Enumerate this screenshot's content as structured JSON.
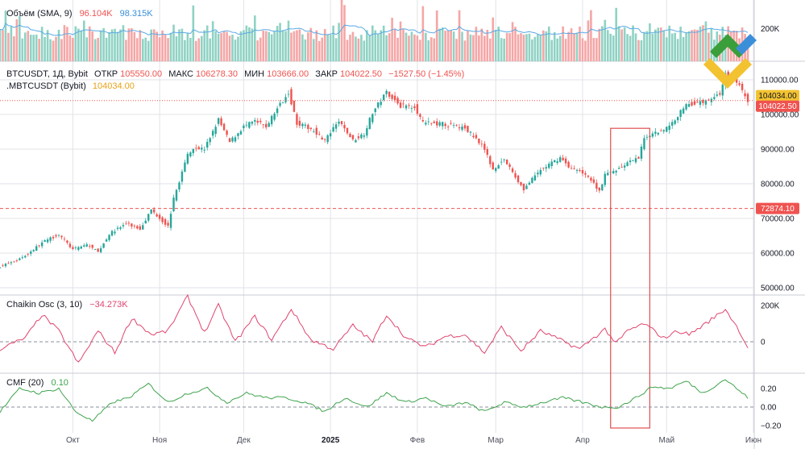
{
  "colors": {
    "up": "#26a69a",
    "down": "#ef5350",
    "vol_up": "#8fd2c4",
    "vol_down": "#f5a6a6",
    "sma": "#5aa9e6",
    "chaikin": "#e0446e",
    "cmf": "#3fa34d",
    "grid": "#e1e3ea",
    "text": "#131722",
    "annotation_box": "#e05050",
    "logo_green": "#3a9e3a",
    "logo_blue": "#3b8fd9",
    "logo_yellow": "#f2c230"
  },
  "volume_legend": {
    "label": "Объём (SMA, 9)",
    "v1": "96.104K",
    "v2": "98.315K"
  },
  "main_legend": {
    "title": "BTCUSDT, 1Д, Bybit",
    "open_label": "ОТКР",
    "open": "105550.00",
    "high_label": "МАКС",
    "high": "106278.30",
    "low_label": "МИН",
    "low": "103666.00",
    "close_label": "ЗАКР",
    "close": "104022.50",
    "change": "−1527.50 (−1.45%)",
    "symbol2": ".MBTCUSDT (Bybit)",
    "symbol2_value": "104034.00"
  },
  "chaikin_legend": {
    "label": "Chaikin Osc (3, 10)",
    "value": "−34.273K"
  },
  "cmf_legend": {
    "label": "CMF (20)",
    "value": "0.10"
  },
  "price_badges": {
    "mark": "104034.00",
    "last": "104022.50",
    "level": "72874.10"
  },
  "chart_data": {
    "type": "candlestick",
    "symbol": "BTCUSDT",
    "interval": "1Д",
    "exchange": "Bybit",
    "x_labels": [
      "Окт",
      "Ноя",
      "Дек",
      "2025",
      "Фев",
      "Мар",
      "Апр",
      "Май",
      "Июн"
    ],
    "price_ticks": [
      "110000.00",
      "100000.00",
      "90000.00",
      "80000.00",
      "70000.00",
      "60000.00",
      "50000.00"
    ],
    "volume_ticks": [
      "200K"
    ],
    "chaikin_ticks": [
      "200K",
      "0"
    ],
    "cmf_ticks": [
      "0.20",
      "0.00",
      "−0.20"
    ],
    "price_ylim": [
      50000,
      112000
    ],
    "horizontal_level": 72874.1,
    "last_price": 104022.5,
    "mark_price": 104034.0,
    "annotation_box": {
      "x_range": [
        "2025-04-11",
        "2025-04-25"
      ],
      "y_range": [
        null,
        96000
      ]
    },
    "close_path": [
      [
        "2024-09-05",
        56200
      ],
      [
        "2024-09-10",
        57500
      ],
      [
        "2024-09-15",
        59800
      ],
      [
        "2024-09-20",
        63000
      ],
      [
        "2024-09-26",
        65500
      ],
      [
        "2024-10-01",
        61000
      ],
      [
        "2024-10-06",
        62500
      ],
      [
        "2024-10-10",
        60300
      ],
      [
        "2024-10-14",
        65500
      ],
      [
        "2024-10-20",
        68500
      ],
      [
        "2024-10-25",
        67000
      ],
      [
        "2024-10-29",
        72500
      ],
      [
        "2024-11-04",
        67700
      ],
      [
        "2024-11-06",
        75600
      ],
      [
        "2024-11-11",
        88500
      ],
      [
        "2024-11-13",
        90500
      ],
      [
        "2024-11-17",
        90000
      ],
      [
        "2024-11-22",
        98500
      ],
      [
        "2024-11-26",
        92000
      ],
      [
        "2024-12-01",
        96500
      ],
      [
        "2024-12-05",
        98000
      ],
      [
        "2024-12-09",
        96500
      ],
      [
        "2024-12-12",
        100500
      ],
      [
        "2024-12-17",
        106500
      ],
      [
        "2024-12-20",
        97500
      ],
      [
        "2024-12-26",
        95500
      ],
      [
        "2024-12-30",
        92500
      ],
      [
        "2025-01-04",
        98000
      ],
      [
        "2025-01-09",
        92500
      ],
      [
        "2025-01-13",
        94500
      ],
      [
        "2025-01-16",
        100500
      ],
      [
        "2025-01-21",
        106500
      ],
      [
        "2025-01-26",
        102500
      ],
      [
        "2025-01-31",
        102400
      ],
      [
        "2025-02-03",
        97500
      ],
      [
        "2025-02-10",
        97300
      ],
      [
        "2025-02-18",
        96000
      ],
      [
        "2025-02-24",
        91500
      ],
      [
        "2025-02-28",
        84300
      ],
      [
        "2025-03-04",
        87000
      ],
      [
        "2025-03-09",
        80700
      ],
      [
        "2025-03-11",
        78500
      ],
      [
        "2025-03-17",
        84000
      ],
      [
        "2025-03-24",
        87500
      ],
      [
        "2025-03-28",
        84300
      ],
      [
        "2025-04-02",
        83000
      ],
      [
        "2025-04-07",
        78000
      ],
      [
        "2025-04-09",
        82500
      ],
      [
        "2025-04-14",
        84500
      ],
      [
        "2025-04-21",
        87500
      ],
      [
        "2025-04-23",
        93500
      ],
      [
        "2025-04-28",
        95000
      ],
      [
        "2025-05-02",
        96500
      ],
      [
        "2025-05-08",
        103000
      ],
      [
        "2025-05-14",
        103500
      ],
      [
        "2025-05-20",
        106000
      ],
      [
        "2025-05-22",
        111500
      ],
      [
        "2025-05-26",
        109500
      ],
      [
        "2025-05-30",
        104022
      ]
    ],
    "chaikin_path": [
      [
        "2024-09-05",
        -40000
      ],
      [
        "2024-09-14",
        20000
      ],
      [
        "2024-09-20",
        150000
      ],
      [
        "2024-09-26",
        60000
      ],
      [
        "2024-10-03",
        -120000
      ],
      [
        "2024-10-10",
        60000
      ],
      [
        "2024-10-16",
        -60000
      ],
      [
        "2024-10-22",
        130000
      ],
      [
        "2024-10-29",
        40000
      ],
      [
        "2024-11-04",
        60000
      ],
      [
        "2024-11-11",
        250000
      ],
      [
        "2024-11-17",
        50000
      ],
      [
        "2024-11-22",
        200000
      ],
      [
        "2024-11-28",
        0
      ],
      [
        "2024-12-05",
        140000
      ],
      [
        "2024-12-11",
        10000
      ],
      [
        "2024-12-18",
        180000
      ],
      [
        "2024-12-25",
        10000
      ],
      [
        "2025-01-02",
        -40000
      ],
      [
        "2025-01-09",
        90000
      ],
      [
        "2025-01-16",
        0
      ],
      [
        "2025-01-21",
        150000
      ],
      [
        "2025-01-28",
        20000
      ],
      [
        "2025-02-04",
        -30000
      ],
      [
        "2025-02-11",
        30000
      ],
      [
        "2025-02-18",
        40000
      ],
      [
        "2025-02-25",
        -60000
      ],
      [
        "2025-03-03",
        80000
      ],
      [
        "2025-03-10",
        -50000
      ],
      [
        "2025-03-17",
        60000
      ],
      [
        "2025-03-24",
        10000
      ],
      [
        "2025-03-31",
        -40000
      ],
      [
        "2025-04-04",
        10000
      ],
      [
        "2025-04-09",
        70000
      ],
      [
        "2025-04-13",
        -10000
      ],
      [
        "2025-04-17",
        60000
      ],
      [
        "2025-04-23",
        100000
      ],
      [
        "2025-04-30",
        20000
      ],
      [
        "2025-05-05",
        60000
      ],
      [
        "2025-05-09",
        40000
      ],
      [
        "2025-05-14",
        90000
      ],
      [
        "2025-05-22",
        180000
      ],
      [
        "2025-05-27",
        60000
      ],
      [
        "2025-05-30",
        -34273
      ]
    ],
    "cmf_path": [
      [
        "2024-09-05",
        -0.05
      ],
      [
        "2024-09-12",
        0.2
      ],
      [
        "2024-09-19",
        0.15
      ],
      [
        "2024-09-26",
        0.2
      ],
      [
        "2024-10-02",
        -0.05
      ],
      [
        "2024-10-08",
        -0.15
      ],
      [
        "2024-10-15",
        0.05
      ],
      [
        "2024-10-21",
        0.1
      ],
      [
        "2024-10-28",
        0.25
      ],
      [
        "2024-11-04",
        0.05
      ],
      [
        "2024-11-11",
        0.15
      ],
      [
        "2024-11-18",
        0.2
      ],
      [
        "2024-11-25",
        0.05
      ],
      [
        "2024-12-02",
        0.15
      ],
      [
        "2024-12-09",
        0.1
      ],
      [
        "2024-12-16",
        0.1
      ],
      [
        "2024-12-23",
        0.05
      ],
      [
        "2024-12-30",
        -0.05
      ],
      [
        "2025-01-06",
        0.1
      ],
      [
        "2025-01-14",
        0.0
      ],
      [
        "2025-01-21",
        0.15
      ],
      [
        "2025-01-28",
        0.05
      ],
      [
        "2025-02-04",
        0.1
      ],
      [
        "2025-02-11",
        0.0
      ],
      [
        "2025-02-18",
        0.05
      ],
      [
        "2025-02-25",
        -0.05
      ],
      [
        "2025-03-04",
        0.05
      ],
      [
        "2025-03-11",
        0.0
      ],
      [
        "2025-03-18",
        0.05
      ],
      [
        "2025-03-25",
        0.1
      ],
      [
        "2025-04-01",
        0.05
      ],
      [
        "2025-04-08",
        0.0
      ],
      [
        "2025-04-14",
        0.0
      ],
      [
        "2025-04-20",
        0.1
      ],
      [
        "2025-04-26",
        0.22
      ],
      [
        "2025-05-02",
        0.2
      ],
      [
        "2025-05-08",
        0.28
      ],
      [
        "2025-05-14",
        0.15
      ],
      [
        "2025-05-22",
        0.3
      ],
      [
        "2025-05-30",
        0.1
      ]
    ]
  }
}
